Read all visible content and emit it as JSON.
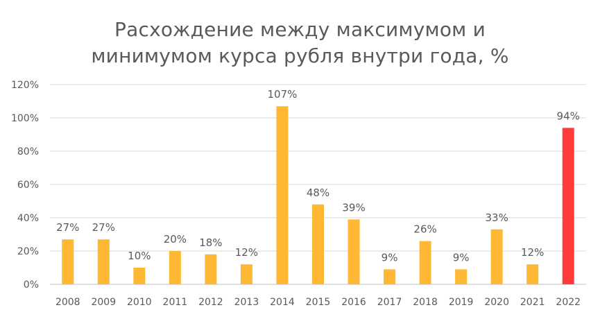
{
  "chart_data": {
    "type": "bar",
    "title_line1": "Расхождение между максимумом и",
    "title_line2": "минимумом курса рубля внутри года, %",
    "xlabel": "",
    "ylabel": "",
    "ylim": [
      0,
      120
    ],
    "y_ticks": [
      0,
      20,
      40,
      60,
      80,
      100,
      120
    ],
    "y_tick_labels": [
      "0%",
      "20%",
      "40%",
      "60%",
      "80%",
      "100%",
      "120%"
    ],
    "grid": true,
    "categories": [
      "2008",
      "2009",
      "2010",
      "2011",
      "2012",
      "2013",
      "2014",
      "2015",
      "2016",
      "2017",
      "2018",
      "2019",
      "2020",
      "2021",
      "2022"
    ],
    "values": [
      27,
      27,
      10,
      20,
      18,
      12,
      107,
      48,
      39,
      9,
      26,
      9,
      33,
      12,
      94
    ],
    "data_labels": [
      "27%",
      "27%",
      "10%",
      "20%",
      "18%",
      "12%",
      "107%",
      "48%",
      "39%",
      "9%",
      "26%",
      "9%",
      "33%",
      "12%",
      "94%"
    ],
    "colors": [
      "#FFB833",
      "#FFB833",
      "#FFB833",
      "#FFB833",
      "#FFB833",
      "#FFB833",
      "#FFB833",
      "#FFB833",
      "#FFB833",
      "#FFB833",
      "#FFB833",
      "#FFB833",
      "#FFB833",
      "#FFB833",
      "#FF3B3B"
    ],
    "gridline_color": "#D9D9D9",
    "axis_color": "#BFBFBF"
  }
}
